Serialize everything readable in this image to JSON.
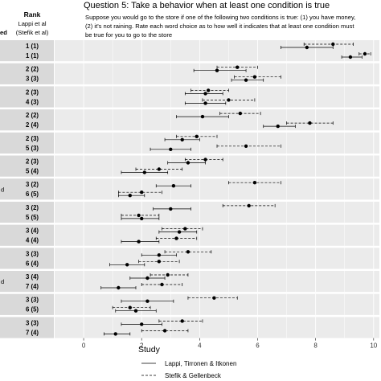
{
  "chart_data": {
    "type": "scatter",
    "title": "Question 5: Take a behavior when at least one condition is true",
    "subtitle": [
      "Suppose you would go to the store if one of the following two conditions is true: (1) you have money,",
      "(2) it's not raining. Rate each word choice as to how well it indicates that at least one condition must",
      "be true for you to go to the store"
    ],
    "rank_header": [
      "Rank",
      "Lappi et al",
      "(Stefik et al)"
    ],
    "side_label_fragment": "ed",
    "xlim": [
      -1,
      10.2
    ],
    "xticks": [
      0,
      2,
      4,
      6,
      8,
      10
    ],
    "xlabel": "Study",
    "grid": true,
    "legend_position": "bottom",
    "series": [
      {
        "name": "Lappi, Tirronen & Itkonen",
        "dash": "solid"
      },
      {
        "name": "Stefik & Gellenbeck",
        "dash": "dashed"
      }
    ],
    "groups": [
      {
        "left_label": "",
        "rows": [
          {
            "rank": "1 (1)",
            "l": [
              6.8,
              7.7,
              8.6
            ],
            "s": [
              7.6,
              8.6,
              9.3
            ]
          },
          {
            "rank": "1 (1)",
            "l": [
              8.9,
              9.2,
              9.6
            ],
            "s": [
              9.5,
              9.7,
              9.9
            ]
          }
        ]
      },
      {
        "left_label": "",
        "rows": [
          {
            "rank": "2 (2)",
            "l": [
              3.8,
              4.6,
              5.6
            ],
            "s": [
              4.6,
              5.3,
              6.0
            ]
          },
          {
            "rank": "3 (3)",
            "l": [
              5.1,
              5.6,
              6.2
            ],
            "s": [
              5.2,
              5.9,
              6.8
            ]
          }
        ]
      },
      {
        "left_label": "",
        "rows": [
          {
            "rank": "2 (3)",
            "l": [
              3.5,
              4.2,
              4.8
            ],
            "s": [
              3.7,
              4.3,
              5.0
            ]
          },
          {
            "rank": "4 (3)",
            "l": [
              3.5,
              4.2,
              4.9
            ],
            "s": [
              4.1,
              5.0,
              5.9
            ]
          }
        ]
      },
      {
        "left_label": "",
        "rows": [
          {
            "rank": "2 (2)",
            "l": [
              3.2,
              4.1,
              5.0
            ],
            "s": [
              4.7,
              5.4,
              6.1
            ]
          },
          {
            "rank": "2 (4)",
            "l": [
              6.2,
              6.7,
              7.3
            ],
            "s": [
              7.0,
              7.8,
              8.6
            ]
          }
        ]
      },
      {
        "left_label": "",
        "rows": [
          {
            "rank": "2 (3)",
            "l": [
              2.8,
              3.4,
              4.0
            ],
            "s": [
              3.2,
              3.9,
              4.6
            ]
          },
          {
            "rank": "5 (3)",
            "l": [
              2.3,
              3.0,
              3.7
            ],
            "s": [
              4.6,
              5.6,
              6.8
            ]
          }
        ]
      },
      {
        "left_label": "",
        "rows": [
          {
            "rank": "2 (3)",
            "l": [
              2.9,
              3.6,
              4.2
            ],
            "s": [
              3.5,
              4.2,
              4.8
            ]
          },
          {
            "rank": "5 (4)",
            "l": [
              1.3,
              2.1,
              2.9
            ],
            "s": [
              1.8,
              2.6,
              3.4
            ]
          }
        ]
      },
      {
        "left_label": "d",
        "rows": [
          {
            "rank": "3 (2)",
            "l": [
              2.5,
              3.1,
              3.7
            ],
            "s": [
              5.0,
              5.9,
              6.8
            ]
          },
          {
            "rank": "6 (5)",
            "l": [
              1.2,
              1.6,
              2.1
            ],
            "s": [
              1.2,
              2.0,
              2.7
            ]
          }
        ]
      },
      {
        "left_label": "",
        "rows": [
          {
            "rank": "3 (2)",
            "l": [
              2.4,
              3.0,
              3.7
            ],
            "s": [
              4.8,
              5.7,
              6.6
            ]
          },
          {
            "rank": "5 (5)",
            "l": [
              1.3,
              2.0,
              2.6
            ],
            "s": [
              1.3,
              1.9,
              2.6
            ]
          }
        ]
      },
      {
        "left_label": "",
        "rows": [
          {
            "rank": "3 (4)",
            "l": [
              2.6,
              3.3,
              3.9
            ],
            "s": [
              2.7,
              3.5,
              4.1
            ]
          },
          {
            "rank": "4 (4)",
            "l": [
              1.3,
              1.9,
              2.6
            ],
            "s": [
              2.5,
              3.2,
              3.9
            ]
          }
        ]
      },
      {
        "left_label": "",
        "rows": [
          {
            "rank": "3 (3)",
            "l": [
              2.0,
              2.6,
              3.2
            ],
            "s": [
              2.8,
              3.6,
              4.4
            ]
          },
          {
            "rank": "6 (4)",
            "l": [
              0.9,
              1.5,
              2.1
            ],
            "s": [
              1.9,
              2.6,
              3.3
            ]
          }
        ]
      },
      {
        "left_label": "d",
        "rows": [
          {
            "rank": "3 (4)",
            "l": [
              1.6,
              2.2,
              2.8
            ],
            "s": [
              2.3,
              2.9,
              3.6
            ]
          },
          {
            "rank": "7 (4)",
            "l": [
              0.6,
              1.2,
              1.8
            ],
            "s": [
              2.0,
              2.7,
              3.4
            ]
          }
        ]
      },
      {
        "left_label": "",
        "rows": [
          {
            "rank": "3 (3)",
            "l": [
              1.3,
              2.2,
              3.1
            ],
            "s": [
              3.6,
              4.5,
              5.3
            ]
          },
          {
            "rank": "6 (5)",
            "l": [
              1.1,
              1.8,
              2.5
            ],
            "s": [
              1.0,
              1.6,
              2.3
            ]
          }
        ]
      },
      {
        "left_label": "",
        "rows": [
          {
            "rank": "3 (3)",
            "l": [
              1.3,
              2.0,
              2.7
            ],
            "s": [
              2.6,
              3.4,
              4.1
            ]
          },
          {
            "rank": "7 (4)",
            "l": [
              0.7,
              1.1,
              1.6
            ],
            "s": [
              2.0,
              2.8,
              3.6
            ]
          }
        ]
      }
    ]
  }
}
